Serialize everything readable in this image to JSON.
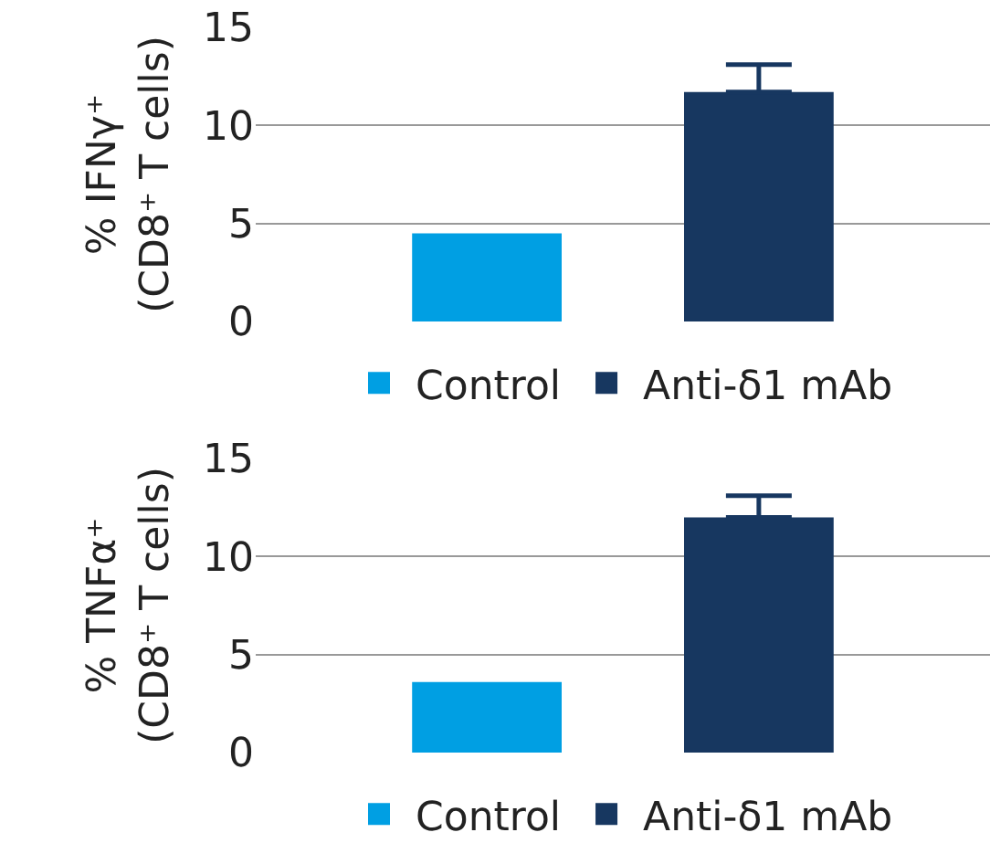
{
  "chart_data": [
    {
      "type": "bar",
      "ylabel": "% IFNγ⁺\n(CD8⁺ T cells)",
      "categories": [
        null,
        null
      ],
      "ylim": [
        0,
        15
      ],
      "yticks": [
        0,
        5,
        10,
        15
      ],
      "grid": "y",
      "legend": "bottom",
      "series": [
        {
          "name": "Control",
          "color": "#009fe3",
          "values": [
            4.5,
            null
          ]
        },
        {
          "name": "Anti-δ1 mAb",
          "color": "#173760",
          "values": [
            null,
            11.7
          ],
          "errors": [
            null,
            [
              11.7,
              13.1
            ]
          ]
        }
      ]
    },
    {
      "type": "bar",
      "ylabel": "% TNFα⁺\n(CD8⁺ T cells)",
      "categories": [
        null,
        null
      ],
      "ylim": [
        0,
        15
      ],
      "yticks": [
        0,
        5,
        10,
        15
      ],
      "grid": "y",
      "legend": "bottom",
      "series": [
        {
          "name": "Control",
          "color": "#009fe3",
          "values": [
            3.6,
            null
          ]
        },
        {
          "name": "Anti-δ1 mAb",
          "color": "#173760",
          "values": [
            null,
            12.0
          ],
          "errors": [
            null,
            [
              12.0,
              13.1
            ]
          ]
        }
      ]
    }
  ]
}
